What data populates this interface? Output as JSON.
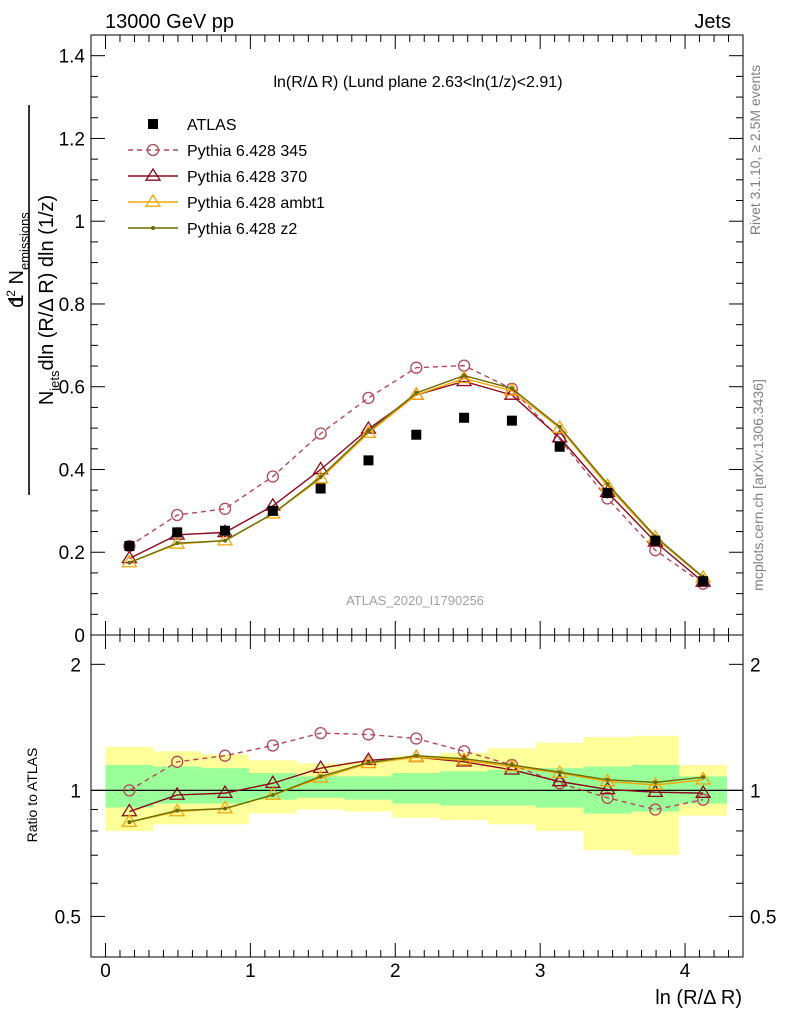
{
  "header": {
    "left": "13000 GeV pp",
    "right": "Jets"
  },
  "plot_title": "ln(R/Δ R) (Lund plane 2.63<ln(1/z)<2.91)",
  "watermark": "ATLAS_2020_I1790256",
  "side_labels": {
    "rivet": "Rivet 3.1.10, ≥ 2.5M events",
    "mcplots": "mcplots.cern.ch [arXiv:1306.3436]"
  },
  "colors": {
    "atlas": "#000000",
    "p345": "#b5475b",
    "p370": "#8b0a1f",
    "ambt1": "#f2a60d",
    "z2": "#6b6b00",
    "band_inner": "#99ff99",
    "band_outer": "#ffff99"
  },
  "chart_data": [
    {
      "type": "scatter",
      "panel": "main",
      "ylabel": "1/N_jets d²N_emissions / dln(R/ΔR) dln(1/z)",
      "ylim": [
        0,
        1.45
      ],
      "xlim": [
        -0.1,
        4.4
      ],
      "yticks": [
        0,
        0.2,
        0.4,
        0.6,
        0.8,
        1,
        1.2,
        1.4
      ],
      "ytick_labels": [
        "0",
        "0.2",
        "0.4",
        "0.6",
        "0.8",
        "1",
        "1.2",
        "1.4"
      ],
      "x": [
        0.165,
        0.495,
        0.825,
        1.155,
        1.485,
        1.815,
        2.145,
        2.475,
        2.805,
        3.135,
        3.465,
        3.795,
        4.125
      ],
      "series": [
        {
          "name": "ATLAS",
          "values": [
            0.215,
            0.248,
            0.252,
            0.3,
            0.354,
            0.422,
            0.484,
            0.525,
            0.518,
            0.455,
            0.343,
            0.228,
            0.13
          ]
        },
        {
          "name": "Pythia 6.428 345",
          "values": [
            0.215,
            0.29,
            0.305,
            0.383,
            0.487,
            0.573,
            0.646,
            0.651,
            0.595,
            0.473,
            0.33,
            0.205,
            0.124
          ]
        },
        {
          "name": "Pythia 6.428 370",
          "values": [
            0.185,
            0.242,
            0.248,
            0.312,
            0.4,
            0.498,
            0.58,
            0.613,
            0.58,
            0.477,
            0.345,
            0.225,
            0.128
          ]
        },
        {
          "name": "Pythia 6.428 ambt1",
          "values": [
            0.175,
            0.22,
            0.228,
            0.293,
            0.378,
            0.488,
            0.58,
            0.62,
            0.59,
            0.5,
            0.36,
            0.235,
            0.138
          ]
        },
        {
          "name": "Pythia 6.428 z2",
          "values": [
            0.175,
            0.222,
            0.228,
            0.293,
            0.382,
            0.492,
            0.585,
            0.627,
            0.596,
            0.503,
            0.365,
            0.238,
            0.14
          ]
        }
      ]
    },
    {
      "type": "line",
      "panel": "ratio",
      "ylabel": "Ratio to ATLAS",
      "xlabel": "ln (R/Δ R)",
      "ylim": [
        0.4,
        2.35
      ],
      "xlim": [
        -0.1,
        4.4
      ],
      "xticks": [
        0,
        1,
        2,
        3,
        4
      ],
      "xtick_labels": [
        "0",
        "1",
        "2",
        "3",
        "4"
      ],
      "yticks": [
        0.5,
        1,
        2
      ],
      "ytick_labels": [
        "0.5",
        "1",
        "2"
      ],
      "log_y": true,
      "bin_edges": [
        0.0,
        0.33,
        0.66,
        0.99,
        1.32,
        1.65,
        1.98,
        2.31,
        2.64,
        2.97,
        3.3,
        3.63,
        3.96,
        4.29
      ],
      "band_inner": [
        [
          0.91,
          1.15
        ],
        [
          0.93,
          1.14
        ],
        [
          0.93,
          1.13
        ],
        [
          0.95,
          1.1
        ],
        [
          0.96,
          1.08
        ],
        [
          0.95,
          1.08
        ],
        [
          0.93,
          1.1
        ],
        [
          0.92,
          1.11
        ],
        [
          0.92,
          1.12
        ],
        [
          0.91,
          1.13
        ],
        [
          0.88,
          1.14
        ],
        [
          0.89,
          1.15
        ],
        [
          0.93,
          1.08
        ]
      ],
      "band_outer": [
        [
          0.8,
          1.27
        ],
        [
          0.83,
          1.24
        ],
        [
          0.83,
          1.22
        ],
        [
          0.88,
          1.18
        ],
        [
          0.9,
          1.16
        ],
        [
          0.89,
          1.17
        ],
        [
          0.86,
          1.21
        ],
        [
          0.85,
          1.23
        ],
        [
          0.83,
          1.26
        ],
        [
          0.8,
          1.3
        ],
        [
          0.72,
          1.34
        ],
        [
          0.7,
          1.35
        ],
        [
          0.87,
          1.15
        ]
      ],
      "x": [
        0.165,
        0.495,
        0.825,
        1.155,
        1.485,
        1.815,
        2.145,
        2.475,
        2.805,
        3.135,
        3.465,
        3.795,
        4.125
      ],
      "series": [
        {
          "name": "Pythia 6.428 345",
          "values": [
            1.0,
            1.17,
            1.21,
            1.28,
            1.37,
            1.36,
            1.33,
            1.24,
            1.15,
            1.04,
            0.96,
            0.9,
            0.95
          ]
        },
        {
          "name": "Pythia 6.428 370",
          "values": [
            0.89,
            0.975,
            0.985,
            1.04,
            1.13,
            1.18,
            1.2,
            1.17,
            1.12,
            1.05,
            1.005,
            0.99,
            0.985
          ]
        },
        {
          "name": "Pythia 6.428 ambt1",
          "values": [
            0.84,
            0.89,
            0.905,
            0.975,
            1.07,
            1.16,
            1.2,
            1.18,
            1.14,
            1.1,
            1.05,
            1.03,
            1.06
          ]
        },
        {
          "name": "Pythia 6.428 z2",
          "values": [
            0.84,
            0.895,
            0.905,
            0.975,
            1.08,
            1.165,
            1.21,
            1.19,
            1.15,
            1.105,
            1.06,
            1.045,
            1.075
          ]
        }
      ]
    }
  ]
}
